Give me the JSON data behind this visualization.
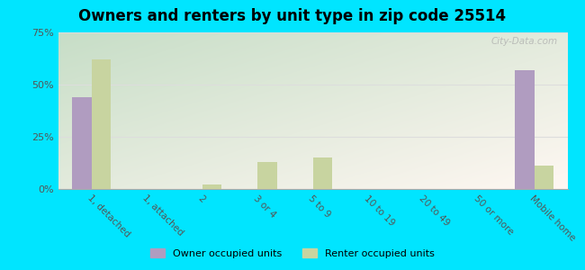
{
  "title": "Owners and renters by unit type in zip code 25514",
  "categories": [
    "1, detached",
    "1, attached",
    "2",
    "3 or 4",
    "5 to 9",
    "10 to 19",
    "20 to 49",
    "50 or more",
    "Mobile home"
  ],
  "owner_values": [
    44,
    0,
    0,
    0,
    0,
    0,
    0,
    0,
    57
  ],
  "renter_values": [
    62,
    0,
    2,
    13,
    15,
    0,
    0,
    0,
    11
  ],
  "owner_color": "#b09cc0",
  "renter_color": "#c8d4a0",
  "background_color": "#00e5ff",
  "plot_bg_top_left": "#c8ddc8",
  "plot_bg_bottom_right": "#f0f5ec",
  "ylim": [
    0,
    75
  ],
  "yticks": [
    0,
    25,
    50,
    75
  ],
  "ytick_labels": [
    "0%",
    "25%",
    "50%",
    "75%"
  ],
  "legend_owner": "Owner occupied units",
  "legend_renter": "Renter occupied units",
  "title_fontsize": 12,
  "watermark": "City-Data.com",
  "grid_color": "#dddddd"
}
